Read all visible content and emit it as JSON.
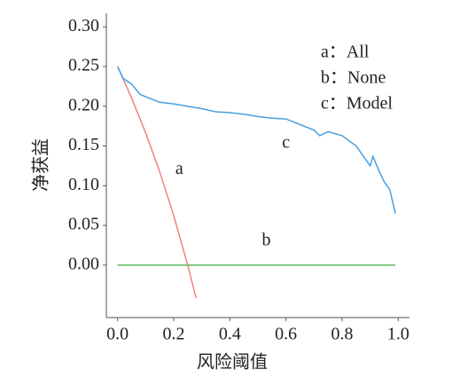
{
  "chart_data": {
    "type": "line",
    "xlabel": "风险阈值",
    "ylabel": "净获益",
    "xlim": [
      -0.04,
      1.04
    ],
    "ylim": [
      -0.066,
      0.317
    ],
    "xticks": [
      {
        "value": 0,
        "label": "0.0"
      },
      {
        "value": 0.2,
        "label": "0.2"
      },
      {
        "value": 0.4,
        "label": "0.4"
      },
      {
        "value": 0.6,
        "label": "0.6"
      },
      {
        "value": 0.8,
        "label": "0.8"
      },
      {
        "value": 1,
        "label": "1.0"
      }
    ],
    "yticks": [
      {
        "value": 0,
        "label": "0.00"
      },
      {
        "value": 0.05,
        "label": "0.05"
      },
      {
        "value": 0.1,
        "label": "0.10"
      },
      {
        "value": 0.15,
        "label": "0.15"
      },
      {
        "value": 0.2,
        "label": "0.20"
      },
      {
        "value": 0.25,
        "label": "0.25"
      },
      {
        "value": 0.3,
        "label": "0.30"
      }
    ],
    "series": [
      {
        "name": "a：All",
        "label": "a",
        "label_at": [
          0.22,
          0.12
        ],
        "color": "#f08080",
        "x": [
          0,
          0.05,
          0.1,
          0.15,
          0.2,
          0.25,
          0.28
        ],
        "values": [
          0.25,
          0.2105,
          0.1667,
          0.1176,
          0.0625,
          0,
          -0.0417
        ]
      },
      {
        "name": "b：None",
        "label": "b",
        "label_at": [
          0.53,
          0.03
        ],
        "color": "#5cb85c",
        "x": [
          0,
          0.99
        ],
        "values": [
          0,
          0
        ]
      },
      {
        "name": "c：Model",
        "label": "c",
        "label_at": [
          0.6,
          0.153
        ],
        "color": "#4a9fe0",
        "x": [
          0,
          0.02,
          0.05,
          0.08,
          0.1,
          0.15,
          0.2,
          0.3,
          0.35,
          0.4,
          0.45,
          0.5,
          0.55,
          0.6,
          0.65,
          0.7,
          0.72,
          0.75,
          0.8,
          0.85,
          0.88,
          0.9,
          0.91,
          0.93,
          0.95,
          0.97,
          0.99
        ],
        "values": [
          0.25,
          0.235,
          0.228,
          0.215,
          0.212,
          0.205,
          0.203,
          0.197,
          0.193,
          0.192,
          0.19,
          0.187,
          0.185,
          0.184,
          0.177,
          0.17,
          0.163,
          0.168,
          0.163,
          0.15,
          0.135,
          0.125,
          0.137,
          0.12,
          0.105,
          0.095,
          0.065
        ]
      }
    ]
  }
}
